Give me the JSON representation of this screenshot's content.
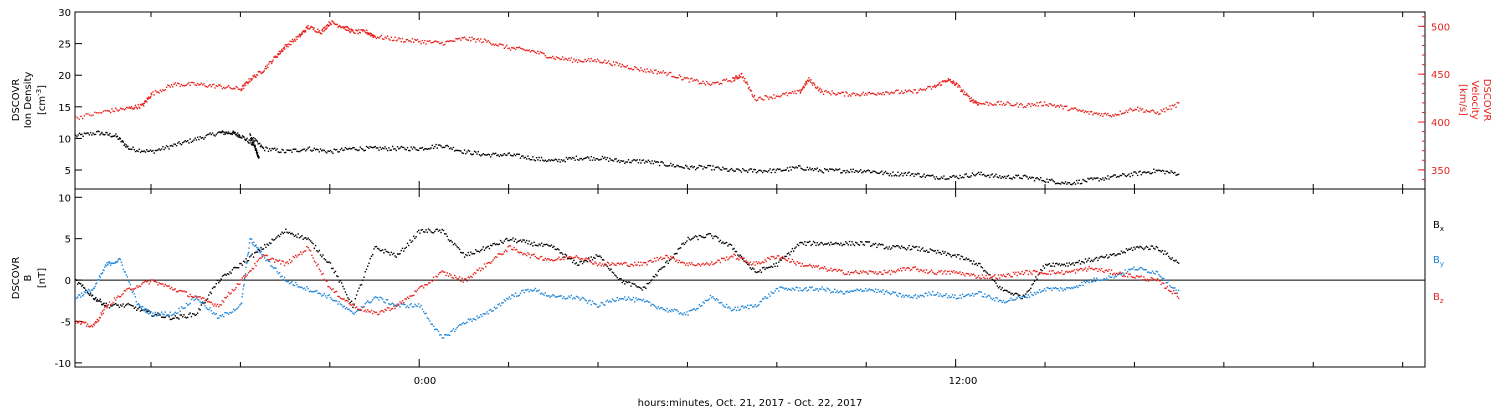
{
  "xlabel": "hours:minutes, Oct. 21, 2017 - Oct. 22, 2017",
  "x_ticks": [
    "0:00",
    "12:00"
  ],
  "colors": {
    "black": "#000000",
    "red": "#e8221c",
    "blue": "#1f86d8"
  },
  "chart_data": [
    {
      "type": "scatter",
      "panel": "top",
      "x_unit": "hours relative to Oct. 22, 2017 0:00",
      "xlim": [
        -7.7,
        22.5
      ],
      "left_axis": {
        "label_lines": [
          "DSCOVR",
          "Ion Density"
        ],
        "unit_lines": [
          "[cm",
          "-3",
          "]"
        ],
        "ylim": [
          2,
          30
        ],
        "ticks": [
          "5",
          "10",
          "15",
          "20",
          "25",
          "30"
        ]
      },
      "right_axis": {
        "label_lines": [
          "DSCOVR",
          "Velocity",
          "[km/s]"
        ],
        "ylim": [
          330,
          515
        ],
        "ticks": [
          "350",
          "400",
          "450",
          "500"
        ]
      },
      "series": [
        {
          "axis": "left",
          "color": "#000000",
          "x": [
            -7.7,
            -7.2,
            -6.8,
            -6.5,
            -6.0,
            -5.5,
            -5.0,
            -4.5,
            -4.2,
            -4.0,
            -3.7,
            -3.6,
            -3.8,
            -3.5,
            -3.0,
            -2.5,
            -2.0,
            -1.5,
            -1.0,
            -0.5,
            0.0,
            0.5,
            1.0,
            1.5,
            2.0,
            2.5,
            3.0,
            3.5,
            4.0,
            4.5,
            5.0,
            5.5,
            6.0,
            6.5,
            7.0,
            7.5,
            8.0,
            8.5,
            9.0,
            9.5,
            10.0,
            10.5,
            11.0,
            11.5,
            12.0,
            12.5,
            13.0,
            13.5,
            14.0,
            14.5,
            15.0,
            15.5,
            16.0,
            16.5,
            17.0
          ],
          "y": [
            10.5,
            11.0,
            10.5,
            8.5,
            8.0,
            9.0,
            10.0,
            11.0,
            11.0,
            10.5,
            9.0,
            7.0,
            10.5,
            8.5,
            8.0,
            8.5,
            8.0,
            8.5,
            8.5,
            8.5,
            8.5,
            9.0,
            8.0,
            7.5,
            7.5,
            7.0,
            6.5,
            7.0,
            7.0,
            6.5,
            6.5,
            6.0,
            5.5,
            5.5,
            5.0,
            5.0,
            5.0,
            5.5,
            5.0,
            5.0,
            5.0,
            4.5,
            4.5,
            4.0,
            4.0,
            4.5,
            4.0,
            4.0,
            3.5,
            3.0,
            3.5,
            4.0,
            4.5,
            5.0,
            4.5
          ]
        },
        {
          "axis": "right",
          "color": "#e8221c",
          "x": [
            -7.7,
            -7.0,
            -6.5,
            -6.2,
            -6.0,
            -5.5,
            -5.0,
            -4.5,
            -4.0,
            -3.8,
            -3.5,
            -3.2,
            -3.0,
            -2.7,
            -2.5,
            -2.2,
            -2.0,
            -1.7,
            -1.5,
            -1.2,
            -1.0,
            -0.5,
            0.0,
            0.5,
            1.0,
            1.5,
            2.0,
            2.5,
            3.0,
            3.5,
            4.0,
            4.5,
            5.0,
            5.5,
            6.0,
            6.5,
            7.0,
            7.2,
            7.5,
            8.0,
            8.5,
            8.7,
            9.0,
            9.5,
            10.0,
            10.5,
            11.0,
            11.5,
            11.8,
            12.0,
            12.3,
            12.5,
            13.0,
            13.5,
            14.0,
            14.5,
            15.0,
            15.5,
            16.0,
            16.5,
            17.0
          ],
          "y": [
            405,
            412,
            415,
            418,
            430,
            440,
            440,
            438,
            435,
            445,
            455,
            470,
            480,
            490,
            500,
            495,
            505,
            500,
            495,
            495,
            490,
            487,
            485,
            483,
            488,
            485,
            478,
            475,
            468,
            465,
            465,
            460,
            455,
            452,
            445,
            440,
            445,
            450,
            425,
            428,
            432,
            445,
            432,
            430,
            430,
            432,
            432,
            437,
            445,
            440,
            425,
            420,
            420,
            418,
            420,
            415,
            410,
            408,
            415,
            410,
            420
          ]
        }
      ]
    },
    {
      "type": "scatter",
      "panel": "bottom",
      "x_unit": "hours relative to Oct. 22, 2017 0:00",
      "xlim": [
        -7.7,
        22.5
      ],
      "left_axis": {
        "label_lines": [
          "DSCOVR",
          "B"
        ],
        "unit_lines": [
          "[nT]"
        ],
        "ylim": [
          -10.5,
          11
        ],
        "ticks": [
          "-10",
          "-5",
          "0",
          "5",
          "10"
        ]
      },
      "legend": [
        {
          "name": "B",
          "sub": "x",
          "color": "#000000"
        },
        {
          "name": "B",
          "sub": "y",
          "color": "#1f86d8"
        },
        {
          "name": "B",
          "sub": "z",
          "color": "#e8221c"
        }
      ],
      "series": [
        {
          "name": "Bx",
          "color": "#000000",
          "x": [
            -7.7,
            -7.3,
            -7.0,
            -6.5,
            -6.0,
            -5.5,
            -5.0,
            -4.5,
            -4.0,
            -3.5,
            -3.0,
            -2.5,
            -2.0,
            -1.5,
            -1.0,
            -0.5,
            0.0,
            0.5,
            1.0,
            1.5,
            2.0,
            2.5,
            3.0,
            3.5,
            4.0,
            4.5,
            5.0,
            5.5,
            6.0,
            6.5,
            7.0,
            7.5,
            8.0,
            8.5,
            9.0,
            9.5,
            10.0,
            10.5,
            11.0,
            11.5,
            12.0,
            12.5,
            13.0,
            13.5,
            14.0,
            14.5,
            15.0,
            15.5,
            16.0,
            16.5,
            17.0
          ],
          "y": [
            0.0,
            -2.0,
            -3.0,
            -3.0,
            -4.0,
            -4.5,
            -4.0,
            0.0,
            2.0,
            4.0,
            6.0,
            5.0,
            2.0,
            -3.0,
            4.0,
            3.0,
            6.0,
            6.0,
            3.0,
            4.0,
            5.0,
            4.5,
            4.0,
            2.0,
            3.0,
            0.0,
            -1.0,
            2.0,
            5.0,
            5.5,
            4.0,
            1.0,
            2.0,
            4.5,
            4.5,
            4.5,
            4.5,
            4.0,
            4.0,
            3.5,
            3.0,
            2.0,
            -1.0,
            -2.0,
            2.0,
            2.0,
            2.5,
            3.0,
            4.0,
            4.0,
            2.0
          ]
        },
        {
          "name": "By",
          "color": "#1f86d8",
          "x": [
            -7.7,
            -7.3,
            -7.0,
            -6.7,
            -6.3,
            -6.0,
            -5.5,
            -5.0,
            -4.5,
            -4.0,
            -3.8,
            -3.5,
            -3.0,
            -2.5,
            -2.0,
            -1.5,
            -1.0,
            -0.5,
            0.0,
            0.5,
            1.0,
            1.5,
            2.0,
            2.5,
            3.0,
            3.5,
            4.0,
            4.5,
            5.0,
            5.5,
            6.0,
            6.5,
            7.0,
            7.5,
            8.0,
            8.5,
            9.0,
            9.5,
            10.0,
            10.5,
            11.0,
            11.5,
            12.0,
            12.5,
            13.0,
            13.5,
            14.0,
            14.5,
            15.0,
            15.5,
            16.0,
            16.5,
            17.0
          ],
          "y": [
            -2.0,
            -1.0,
            2.0,
            2.5,
            -3.0,
            -4.0,
            -4.0,
            -2.0,
            -4.5,
            -3.0,
            5.0,
            3.0,
            0.0,
            -1.0,
            -2.0,
            -4.0,
            -2.0,
            -3.0,
            -3.0,
            -7.0,
            -5.0,
            -4.0,
            -2.0,
            -1.0,
            -2.0,
            -2.0,
            -3.0,
            -2.0,
            -2.5,
            -3.5,
            -4.0,
            -2.0,
            -3.5,
            -3.0,
            -1.0,
            -1.0,
            -1.0,
            -1.5,
            -1.0,
            -1.5,
            -2.0,
            -1.5,
            -2.0,
            -1.5,
            -2.5,
            -2.0,
            -1.0,
            -1.0,
            0.0,
            0.5,
            1.5,
            1.0,
            -1.5
          ]
        },
        {
          "name": "Bz",
          "color": "#e8221c",
          "x": [
            -7.7,
            -7.3,
            -7.0,
            -6.5,
            -6.0,
            -5.5,
            -5.0,
            -4.5,
            -4.0,
            -3.5,
            -3.0,
            -2.5,
            -2.0,
            -1.5,
            -1.0,
            -0.5,
            0.0,
            0.5,
            1.0,
            1.5,
            2.0,
            2.5,
            3.0,
            3.5,
            4.0,
            4.5,
            5.0,
            5.5,
            6.0,
            6.5,
            7.0,
            7.5,
            8.0,
            8.5,
            9.0,
            9.5,
            10.0,
            10.5,
            11.0,
            11.5,
            12.0,
            12.5,
            13.0,
            13.5,
            14.0,
            14.5,
            15.0,
            15.5,
            16.0,
            16.5,
            17.0
          ],
          "y": [
            -5.0,
            -5.5,
            -3.0,
            -1.0,
            0.0,
            -1.0,
            -2.0,
            -3.0,
            0.0,
            3.0,
            2.0,
            4.0,
            -1.0,
            -3.0,
            -4.0,
            -3.0,
            -1.0,
            1.0,
            0.0,
            2.0,
            4.0,
            3.0,
            2.5,
            3.0,
            2.0,
            2.0,
            2.0,
            3.0,
            2.0,
            2.0,
            3.0,
            2.0,
            3.0,
            2.0,
            1.5,
            1.0,
            1.0,
            1.0,
            1.5,
            1.0,
            1.0,
            0.5,
            0.5,
            1.0,
            1.0,
            1.0,
            1.5,
            1.0,
            0.5,
            0.0,
            -2.0
          ]
        }
      ]
    }
  ]
}
